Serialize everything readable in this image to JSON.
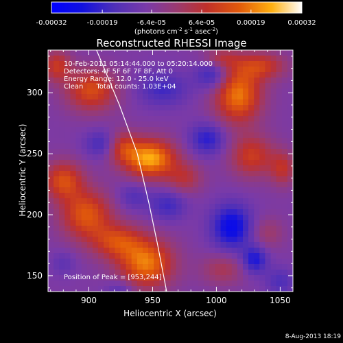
{
  "colorbar": {
    "tick_labels": [
      "-0.00032",
      "-0.00019",
      "-6.4e-05",
      "6.4e-05",
      "0.00019",
      "0.00032"
    ],
    "tick_values": [
      -0.00032,
      -0.00019,
      -6.4e-05,
      6.4e-05,
      0.00019,
      0.00032
    ],
    "range": [
      -0.00032,
      0.00032
    ],
    "units_text": "(photons cm",
    "units_exp1": "-2",
    "units_mid": " s",
    "units_exp2": "-1",
    "units_end": " asec",
    "units_exp3": "-2",
    "units_close": ")"
  },
  "chart_data": {
    "type": "heatmap",
    "title": "Reconstructed RHESSI Image",
    "xlabel": "Heliocentric X (arcsec)",
    "ylabel": "Heliocentric Y (arcsec)",
    "xlim": [
      868,
      1060
    ],
    "ylim": [
      137,
      335
    ],
    "xticks": [
      900,
      950,
      1000,
      1050
    ],
    "yticks": [
      150,
      200,
      250,
      300
    ],
    "info_lines": [
      "10-Feb-2011 05:14:44.000 to 05:20:14.000",
      "Detectors: 4F 5F 6F 7F 8F, Att 0",
      "Energy Range: 12.0 - 25.0 keV",
      "Clean      Total counts: 1.03E+04"
    ],
    "peak_text": "Position of Peak = [953,244]",
    "peak_position": [
      953,
      244
    ],
    "limb_curve": [
      [
        906,
        335
      ],
      [
        924,
        290
      ],
      [
        938,
        250
      ],
      [
        947,
        210
      ],
      [
        954,
        175
      ],
      [
        961,
        137
      ]
    ],
    "blobs": [
      {
        "x": 948,
        "y": 246,
        "sx": 14,
        "sy": 11,
        "v": 0.00031
      },
      {
        "x": 925,
        "y": 256,
        "sx": 9,
        "sy": 9,
        "v": 0.00017
      },
      {
        "x": 975,
        "y": 230,
        "sx": 10,
        "sy": 9,
        "v": 0.00012
      },
      {
        "x": 1017,
        "y": 298,
        "sx": 13,
        "sy": 16,
        "v": 0.00026
      },
      {
        "x": 1035,
        "y": 322,
        "sx": 14,
        "sy": 8,
        "v": 0.00016
      },
      {
        "x": 1003,
        "y": 328,
        "sx": 10,
        "sy": 6,
        "v": 0.00012
      },
      {
        "x": 902,
        "y": 302,
        "sx": 14,
        "sy": 12,
        "v": 0.0002
      },
      {
        "x": 875,
        "y": 322,
        "sx": 8,
        "sy": 9,
        "v": 0.00016
      },
      {
        "x": 880,
        "y": 228,
        "sx": 11,
        "sy": 11,
        "v": 0.0002
      },
      {
        "x": 898,
        "y": 200,
        "sx": 14,
        "sy": 14,
        "v": 0.00022
      },
      {
        "x": 922,
        "y": 178,
        "sx": 14,
        "sy": 10,
        "v": 0.00018
      },
      {
        "x": 945,
        "y": 160,
        "sx": 15,
        "sy": 14,
        "v": 0.00026
      },
      {
        "x": 1028,
        "y": 248,
        "sx": 12,
        "sy": 12,
        "v": 0.00017
      },
      {
        "x": 1052,
        "y": 238,
        "sx": 7,
        "sy": 10,
        "v": 0.00014
      },
      {
        "x": 1005,
        "y": 155,
        "sx": 12,
        "sy": 9,
        "v": 0.0001
      },
      {
        "x": 1040,
        "y": 185,
        "sx": 9,
        "sy": 9,
        "v": 8e-05
      },
      {
        "x": 912,
        "y": 258,
        "sx": 10,
        "sy": 8,
        "v": -0.00013
      },
      {
        "x": 993,
        "y": 262,
        "sx": 10,
        "sy": 9,
        "v": -0.00014
      },
      {
        "x": 1012,
        "y": 190,
        "sx": 11,
        "sy": 13,
        "v": -0.0002
      },
      {
        "x": 1030,
        "y": 163,
        "sx": 7,
        "sy": 8,
        "v": -0.00016
      },
      {
        "x": 997,
        "y": 315,
        "sx": 9,
        "sy": 9,
        "v": -0.00014
      },
      {
        "x": 958,
        "y": 303,
        "sx": 14,
        "sy": 10,
        "v": -0.00011
      },
      {
        "x": 962,
        "y": 208,
        "sx": 10,
        "sy": 9,
        "v": -0.00011
      },
      {
        "x": 935,
        "y": 215,
        "sx": 9,
        "sy": 8,
        "v": -8e-05
      },
      {
        "x": 1050,
        "y": 145,
        "sx": 8,
        "sy": 8,
        "v": -9e-05
      },
      {
        "x": 925,
        "y": 138,
        "sx": 8,
        "sy": 6,
        "v": -8e-05
      },
      {
        "x": 880,
        "y": 160,
        "sx": 7,
        "sy": 7,
        "v": -6e-05
      }
    ],
    "baseline": -7e-05
  },
  "footer_date": "8-Aug-2013 18:19"
}
